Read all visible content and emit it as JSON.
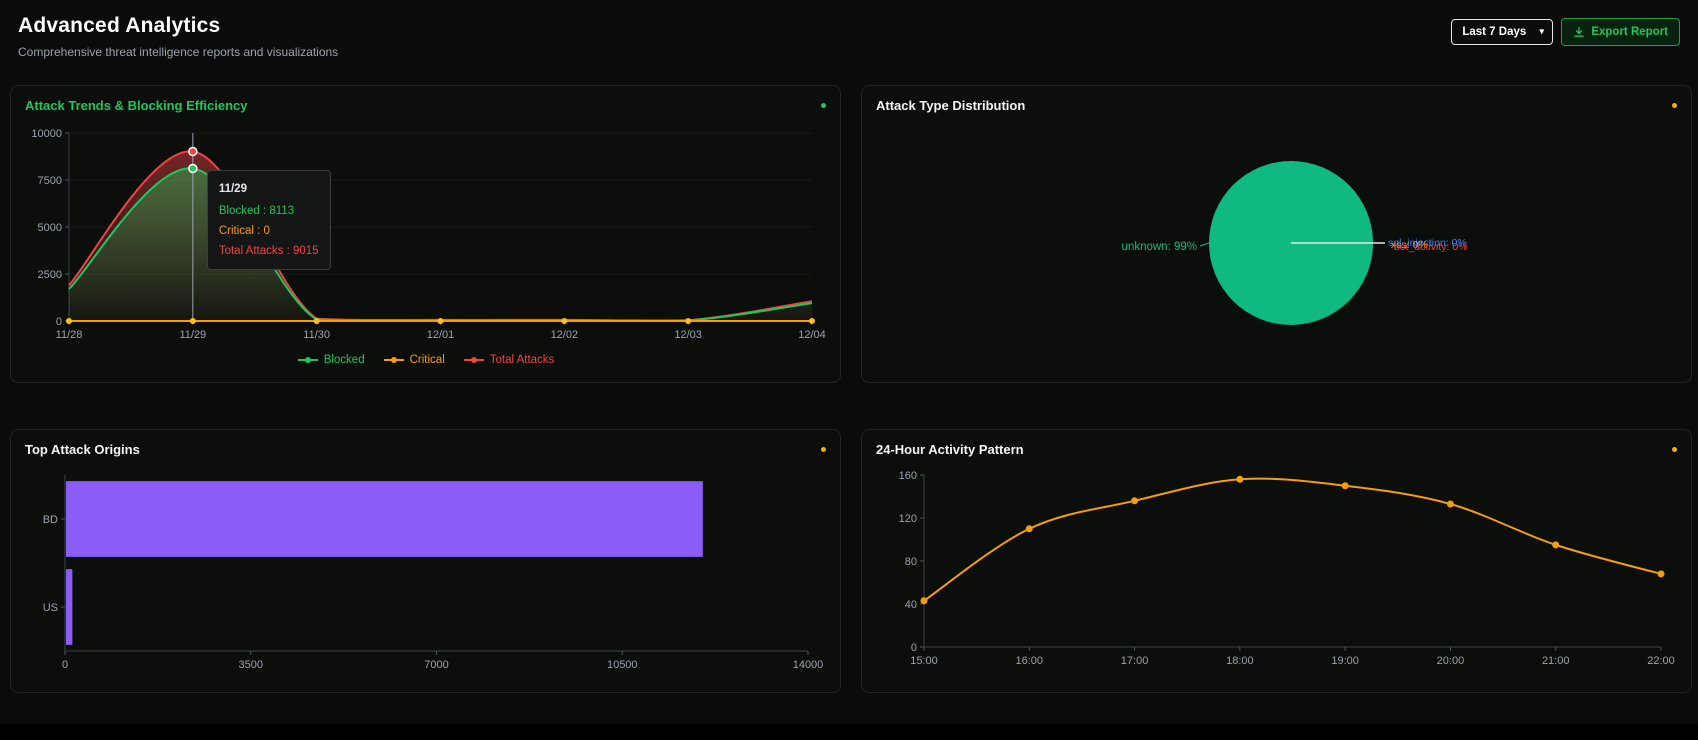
{
  "header": {
    "title": "Advanced Analytics",
    "subtitle": "Comprehensive threat intelligence reports and visualizations",
    "time_range": {
      "selected": "Last 7 Days"
    },
    "export_button_label": "Export Report"
  },
  "panels": {
    "trends": {
      "title": "Attack Trends & Blocking Efficiency",
      "indicator_color": "#22c55e"
    },
    "distribution": {
      "title": "Attack Type Distribution",
      "indicator_color": "#eab308"
    },
    "origins": {
      "title": "Top Attack Origins",
      "indicator_color": "#eab308"
    },
    "activity": {
      "title": "24-Hour Activity Pattern",
      "indicator_color": "#eab308"
    }
  },
  "chart_data": [
    {
      "id": "attack-trends",
      "type": "area",
      "title": "Attack Trends & Blocking Efficiency",
      "categories": [
        "11/28",
        "11/29",
        "11/30",
        "12/01",
        "12/02",
        "12/03",
        "12/04"
      ],
      "series": [
        {
          "name": "Blocked",
          "color": "#22c55e",
          "dot_color": "#22c55e",
          "values": [
            1700,
            8113,
            80,
            40,
            40,
            30,
            950
          ]
        },
        {
          "name": "Critical",
          "color": "#f59e0b",
          "dot_color": "#fbbf24",
          "values": [
            0,
            0,
            0,
            0,
            0,
            0,
            0
          ]
        },
        {
          "name": "Total Attacks",
          "color": "#ef4444",
          "dot_color": "#ef4444",
          "values": [
            1900,
            9015,
            120,
            60,
            60,
            40,
            1050
          ]
        }
      ],
      "ylim": [
        0,
        10000
      ],
      "yticks": [
        0,
        2500,
        5000,
        7500,
        10000
      ],
      "legend_position": "bottom",
      "grid": true,
      "active_index": 1,
      "tooltip": {
        "label": "11/29",
        "rows": [
          {
            "name": "Blocked",
            "value": 8113,
            "color": "#22c55e"
          },
          {
            "name": "Critical",
            "value": 0,
            "color": "#f59e0b"
          },
          {
            "name": "Total Attacks",
            "value": 9015,
            "color": "#ef4444"
          }
        ]
      }
    },
    {
      "id": "attack-type-pie",
      "type": "pie",
      "title": "Attack Type Distribution",
      "slices": [
        {
          "label": "unknown",
          "pct": 99,
          "color": "#10b981"
        },
        {
          "label": "sql_injection",
          "pct": 0,
          "color": "#3b82f6"
        },
        {
          "label": "xss",
          "pct": 0,
          "color": "#f59e0b"
        },
        {
          "label": "bot_activity",
          "pct": 0,
          "color": "#ef4444"
        }
      ]
    },
    {
      "id": "attack-origins",
      "type": "bar",
      "title": "Top Attack Origins",
      "orientation": "horizontal",
      "categories": [
        "BD",
        "US"
      ],
      "values": [
        12000,
        120
      ],
      "color": "#8b5cf6",
      "xlim": [
        0,
        14000
      ],
      "xticks": [
        0,
        3500,
        7000,
        10500,
        14000
      ]
    },
    {
      "id": "hourly-activity",
      "type": "line",
      "title": "24-Hour Activity Pattern",
      "categories": [
        "15:00",
        "16:00",
        "17:00",
        "18:00",
        "19:00",
        "20:00",
        "21:00",
        "22:00"
      ],
      "values": [
        43,
        110,
        136,
        156,
        150,
        133,
        95,
        68
      ],
      "color": "#f59e0b",
      "ylim": [
        0,
        160
      ],
      "yticks": [
        0,
        40,
        80,
        120,
        160
      ]
    }
  ]
}
